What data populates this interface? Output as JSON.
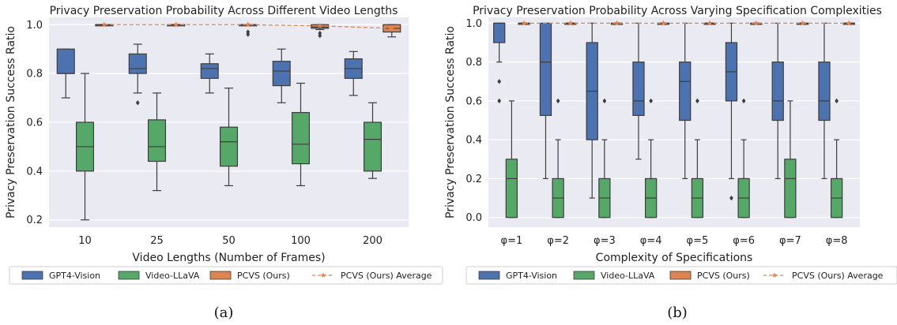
{
  "colors": {
    "gpt4": "#4c72b0",
    "llava": "#55a868",
    "pcvs": "#dd8452",
    "avg": "#dd8452",
    "plot_bg": "#eaeaf2",
    "grid": "#ffffff",
    "box_edge": "#3d3d3d"
  },
  "legend": [
    {
      "label": "GPT4-Vision",
      "kind": "box",
      "color": "#4c72b0"
    },
    {
      "label": "Video-LLaVA",
      "kind": "box",
      "color": "#55a868"
    },
    {
      "label": "PCVS (Ours)",
      "kind": "box",
      "color": "#dd8452"
    },
    {
      "label": "PCVS (Ours) Average",
      "kind": "line",
      "color": "#dd8452"
    }
  ],
  "chart_data": [
    {
      "type": "box",
      "title": "Privacy Preservation Probability Across Different Video Lengths",
      "xlabel": "Video Lengths (Number of Frames)",
      "ylabel": "Privacy Preservation Success Ratio",
      "caption": "(a)",
      "categories": [
        "10",
        "25",
        "50",
        "100",
        "200"
      ],
      "ylim": [
        0.17,
        1.03
      ],
      "yticks": [
        "0.2",
        "0.4",
        "0.6",
        "0.8",
        "1.0"
      ],
      "grid": true,
      "legend_position": "bottom",
      "series": [
        {
          "name": "GPT4-Vision",
          "color": "#4c72b0",
          "boxes": [
            {
              "whislo": 0.7,
              "q1": 0.8,
              "med": 0.8,
              "q3": 0.9,
              "whishi": 0.9,
              "fliers": []
            },
            {
              "whislo": 0.72,
              "q1": 0.8,
              "med": 0.82,
              "q3": 0.88,
              "whishi": 0.92,
              "fliers": [
                0.68
              ]
            },
            {
              "whislo": 0.72,
              "q1": 0.78,
              "med": 0.82,
              "q3": 0.84,
              "whishi": 0.88,
              "fliers": []
            },
            {
              "whislo": 0.68,
              "q1": 0.75,
              "med": 0.81,
              "q3": 0.85,
              "whishi": 0.9,
              "fliers": []
            },
            {
              "whislo": 0.71,
              "q1": 0.78,
              "med": 0.82,
              "q3": 0.86,
              "whishi": 0.89,
              "fliers": []
            }
          ]
        },
        {
          "name": "Video-LLaVA",
          "color": "#55a868",
          "boxes": [
            {
              "whislo": 0.2,
              "q1": 0.4,
              "med": 0.5,
              "q3": 0.6,
              "whishi": 0.8,
              "fliers": []
            },
            {
              "whislo": 0.32,
              "q1": 0.44,
              "med": 0.5,
              "q3": 0.61,
              "whishi": 0.72,
              "fliers": []
            },
            {
              "whislo": 0.34,
              "q1": 0.42,
              "med": 0.52,
              "q3": 0.58,
              "whishi": 0.74,
              "fliers": []
            },
            {
              "whislo": 0.34,
              "q1": 0.43,
              "med": 0.51,
              "q3": 0.64,
              "whishi": 0.76,
              "fliers": []
            },
            {
              "whislo": 0.37,
              "q1": 0.4,
              "med": 0.53,
              "q3": 0.6,
              "whishi": 0.68,
              "fliers": []
            }
          ]
        },
        {
          "name": "PCVS (Ours)",
          "color": "#dd8452",
          "boxes": [
            {
              "whislo": 1.0,
              "q1": 1.0,
              "med": 1.0,
              "q3": 1.0,
              "whishi": 1.0,
              "fliers": []
            },
            {
              "whislo": 1.0,
              "q1": 1.0,
              "med": 1.0,
              "q3": 1.0,
              "whishi": 1.0,
              "fliers": []
            },
            {
              "whislo": 1.0,
              "q1": 1.0,
              "med": 1.0,
              "q3": 1.0,
              "whishi": 1.0,
              "fliers": [
                0.96,
                0.97
              ]
            },
            {
              "whislo": 0.98,
              "q1": 0.985,
              "med": 0.99,
              "q3": 1.0,
              "whishi": 1.0,
              "fliers": [
                0.955,
                0.965
              ]
            },
            {
              "whislo": 0.95,
              "q1": 0.97,
              "med": 0.985,
              "q3": 1.0,
              "whishi": 1.0,
              "fliers": []
            }
          ]
        }
      ],
      "average": {
        "name": "PCVS (Ours) Average",
        "values": [
          1.0,
          1.0,
          1.0,
          0.995,
          0.985
        ]
      }
    },
    {
      "type": "box",
      "title": "Privacy Preservation Probability Across Varying Specification Complexities",
      "xlabel": "Complexity of Specifications",
      "ylabel": "Privacy Preservation Success Ratio",
      "caption": "(b)",
      "categories": [
        "φ=1",
        "φ=2",
        "φ=3",
        "φ=4",
        "φ=5",
        "φ=6",
        "φ=7",
        "φ=8"
      ],
      "ylim": [
        -0.05,
        1.03
      ],
      "yticks": [
        "0.0",
        "0.2",
        "0.4",
        "0.6",
        "0.8",
        "1.0"
      ],
      "grid": true,
      "legend_position": "bottom",
      "series": [
        {
          "name": "GPT4-Vision",
          "color": "#4c72b0",
          "boxes": [
            {
              "whislo": 0.8,
              "q1": 0.9,
              "med": 1.0,
              "q3": 1.0,
              "whishi": 1.0,
              "fliers": [
                0.7,
                0.6
              ]
            },
            {
              "whislo": 0.2,
              "q1": 0.525,
              "med": 0.8,
              "q3": 1.0,
              "whishi": 1.0,
              "fliers": []
            },
            {
              "whislo": 0.1,
              "q1": 0.4,
              "med": 0.65,
              "q3": 0.9,
              "whishi": 1.0,
              "fliers": []
            },
            {
              "whislo": 0.3,
              "q1": 0.525,
              "med": 0.6,
              "q3": 0.8,
              "whishi": 1.0,
              "fliers": []
            },
            {
              "whislo": 0.2,
              "q1": 0.5,
              "med": 0.7,
              "q3": 0.8,
              "whishi": 1.0,
              "fliers": []
            },
            {
              "whislo": 0.2,
              "q1": 0.6,
              "med": 0.75,
              "q3": 0.9,
              "whishi": 1.0,
              "fliers": [
                0.1
              ]
            },
            {
              "whislo": 0.2,
              "q1": 0.5,
              "med": 0.6,
              "q3": 0.8,
              "whishi": 1.0,
              "fliers": []
            },
            {
              "whislo": 0.2,
              "q1": 0.5,
              "med": 0.6,
              "q3": 0.8,
              "whishi": 1.0,
              "fliers": []
            }
          ]
        },
        {
          "name": "Video-LLaVA",
          "color": "#55a868",
          "boxes": [
            {
              "whislo": 0.0,
              "q1": 0.0,
              "med": 0.2,
              "q3": 0.3,
              "whishi": 0.6,
              "fliers": []
            },
            {
              "whislo": 0.0,
              "q1": 0.0,
              "med": 0.1,
              "q3": 0.2,
              "whishi": 0.4,
              "fliers": [
                0.6
              ]
            },
            {
              "whislo": 0.0,
              "q1": 0.0,
              "med": 0.1,
              "q3": 0.2,
              "whishi": 0.4,
              "fliers": [
                0.6
              ]
            },
            {
              "whislo": 0.0,
              "q1": 0.0,
              "med": 0.1,
              "q3": 0.2,
              "whishi": 0.4,
              "fliers": [
                0.6
              ]
            },
            {
              "whislo": 0.0,
              "q1": 0.0,
              "med": 0.1,
              "q3": 0.2,
              "whishi": 0.4,
              "fliers": [
                0.6
              ]
            },
            {
              "whislo": 0.0,
              "q1": 0.0,
              "med": 0.1,
              "q3": 0.2,
              "whishi": 0.4,
              "fliers": [
                0.6
              ]
            },
            {
              "whislo": 0.0,
              "q1": 0.0,
              "med": 0.2,
              "q3": 0.3,
              "whishi": 0.6,
              "fliers": []
            },
            {
              "whislo": 0.0,
              "q1": 0.0,
              "med": 0.1,
              "q3": 0.2,
              "whishi": 0.4,
              "fliers": [
                0.6
              ]
            }
          ]
        },
        {
          "name": "PCVS (Ours)",
          "color": "#dd8452",
          "boxes": [
            {
              "whislo": 1.0,
              "q1": 1.0,
              "med": 1.0,
              "q3": 1.0,
              "whishi": 1.0,
              "fliers": []
            },
            {
              "whislo": 1.0,
              "q1": 1.0,
              "med": 1.0,
              "q3": 1.0,
              "whishi": 1.0,
              "fliers": []
            },
            {
              "whislo": 1.0,
              "q1": 1.0,
              "med": 1.0,
              "q3": 1.0,
              "whishi": 1.0,
              "fliers": []
            },
            {
              "whislo": 1.0,
              "q1": 1.0,
              "med": 1.0,
              "q3": 1.0,
              "whishi": 1.0,
              "fliers": []
            },
            {
              "whislo": 1.0,
              "q1": 1.0,
              "med": 1.0,
              "q3": 1.0,
              "whishi": 1.0,
              "fliers": []
            },
            {
              "whislo": 1.0,
              "q1": 1.0,
              "med": 1.0,
              "q3": 1.0,
              "whishi": 1.0,
              "fliers": []
            },
            {
              "whislo": 1.0,
              "q1": 1.0,
              "med": 1.0,
              "q3": 1.0,
              "whishi": 1.0,
              "fliers": []
            },
            {
              "whislo": 1.0,
              "q1": 1.0,
              "med": 1.0,
              "q3": 1.0,
              "whishi": 1.0,
              "fliers": []
            }
          ]
        }
      ],
      "average": {
        "name": "PCVS (Ours) Average",
        "values": [
          1.0,
          1.0,
          1.0,
          1.0,
          1.0,
          1.0,
          1.0,
          1.0
        ]
      }
    }
  ]
}
